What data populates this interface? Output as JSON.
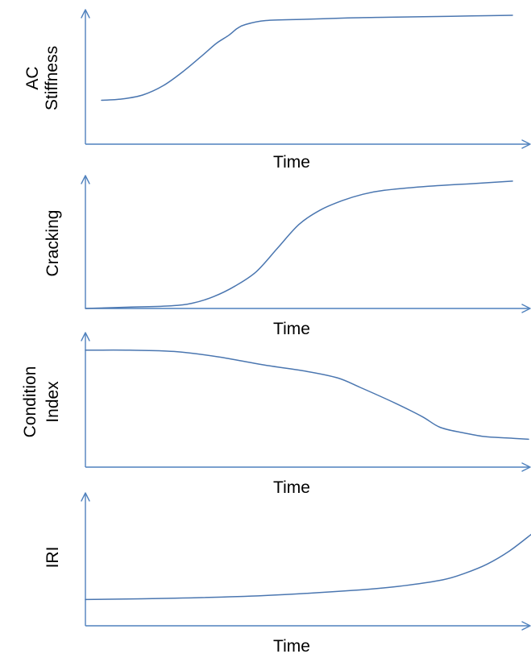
{
  "colors": {
    "axis": "#4f81bd",
    "curve": "#4a76b0"
  },
  "chart_data": [
    {
      "type": "line",
      "xlabel": "Time",
      "ylabel": [
        "AC",
        "Stiffness"
      ],
      "grid": false,
      "xlim": [
        0,
        1
      ],
      "ylim": [
        0,
        1
      ],
      "series": [
        {
          "x": [
            0,
            0.05,
            0.1,
            0.15,
            0.2,
            0.25,
            0.28,
            0.31,
            0.33,
            0.35,
            0.4,
            0.5,
            0.6,
            0.7,
            0.8,
            0.9,
            1.0
          ],
          "y": [
            0.33,
            0.34,
            0.37,
            0.44,
            0.55,
            0.68,
            0.76,
            0.82,
            0.87,
            0.9,
            0.93,
            0.94,
            0.95,
            0.955,
            0.96,
            0.965,
            0.97
          ]
        }
      ]
    },
    {
      "type": "line",
      "xlabel": "Time",
      "ylabel": [
        "Cracking"
      ],
      "grid": false,
      "xlim": [
        0,
        1
      ],
      "ylim": [
        0,
        1
      ],
      "series": [
        {
          "x": [
            0,
            0.1,
            0.2,
            0.25,
            0.3,
            0.35,
            0.4,
            0.45,
            0.5,
            0.55,
            0.6,
            0.65,
            0.7,
            0.8,
            0.9,
            1.0
          ],
          "y": [
            0.0,
            0.01,
            0.02,
            0.04,
            0.09,
            0.17,
            0.28,
            0.46,
            0.64,
            0.75,
            0.82,
            0.87,
            0.9,
            0.93,
            0.95,
            0.97
          ]
        }
      ]
    },
    {
      "type": "line",
      "xlabel": "Time",
      "ylabel": [
        "Condition",
        "Index"
      ],
      "grid": false,
      "xlim": [
        0,
        1
      ],
      "ylim": [
        0,
        1
      ],
      "series": [
        {
          "x": [
            0,
            0.1,
            0.2,
            0.3,
            0.4,
            0.5,
            0.57,
            0.62,
            0.7,
            0.76,
            0.8,
            0.85,
            0.9,
            0.95,
            1.0
          ],
          "y": [
            0.88,
            0.88,
            0.87,
            0.83,
            0.77,
            0.72,
            0.67,
            0.6,
            0.48,
            0.38,
            0.3,
            0.26,
            0.23,
            0.22,
            0.21
          ]
        }
      ]
    },
    {
      "type": "line",
      "xlabel": "Time",
      "ylabel": [
        "IRI"
      ],
      "grid": false,
      "xlim": [
        0,
        1
      ],
      "ylim": [
        0,
        1
      ],
      "series": [
        {
          "x": [
            0,
            0.2,
            0.4,
            0.6,
            0.7,
            0.8,
            0.85,
            0.9,
            0.95,
            1.0
          ],
          "y": [
            0.2,
            0.21,
            0.23,
            0.27,
            0.3,
            0.35,
            0.4,
            0.47,
            0.57,
            0.7
          ]
        }
      ]
    }
  ]
}
